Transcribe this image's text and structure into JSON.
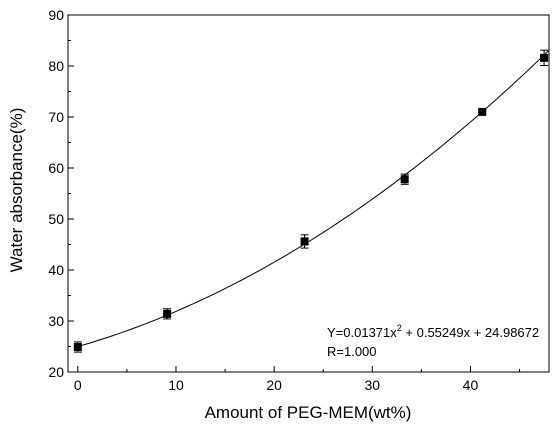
{
  "chart_data": {
    "type": "scatter",
    "title": "",
    "xlabel": "Amount of PEG-MEM(wt%)",
    "ylabel": "Water absorbance(%)",
    "xlim": [
      -1,
      48
    ],
    "ylim": [
      20,
      90
    ],
    "x_ticks": [
      0,
      10,
      20,
      30,
      40
    ],
    "y_ticks": [
      20,
      30,
      40,
      50,
      60,
      70,
      80,
      90
    ],
    "grid": false,
    "series": [
      {
        "points": [
          {
            "x": 0,
            "y": 24.9,
            "err": 1.0
          },
          {
            "x": 9.1,
            "y": 31.4,
            "err": 1.0
          },
          {
            "x": 23.1,
            "y": 45.6,
            "err": 1.3
          },
          {
            "x": 33.3,
            "y": 57.8,
            "err": 1.0
          },
          {
            "x": 41.2,
            "y": 71.0,
            "err": 0.4
          },
          {
            "x": 47.5,
            "y": 81.6,
            "err": 1.5
          }
        ]
      }
    ],
    "fit": {
      "type": "quadratic",
      "coefficients": [
        0.01371,
        0.55249,
        24.98672
      ],
      "x_range": [
        0,
        48
      ],
      "equation_prefix": "Y=0.01371x",
      "equation_exponent": "2",
      "equation_suffix": " + 0.55249x + 24.98672",
      "r_label": "R=1.000"
    }
  }
}
